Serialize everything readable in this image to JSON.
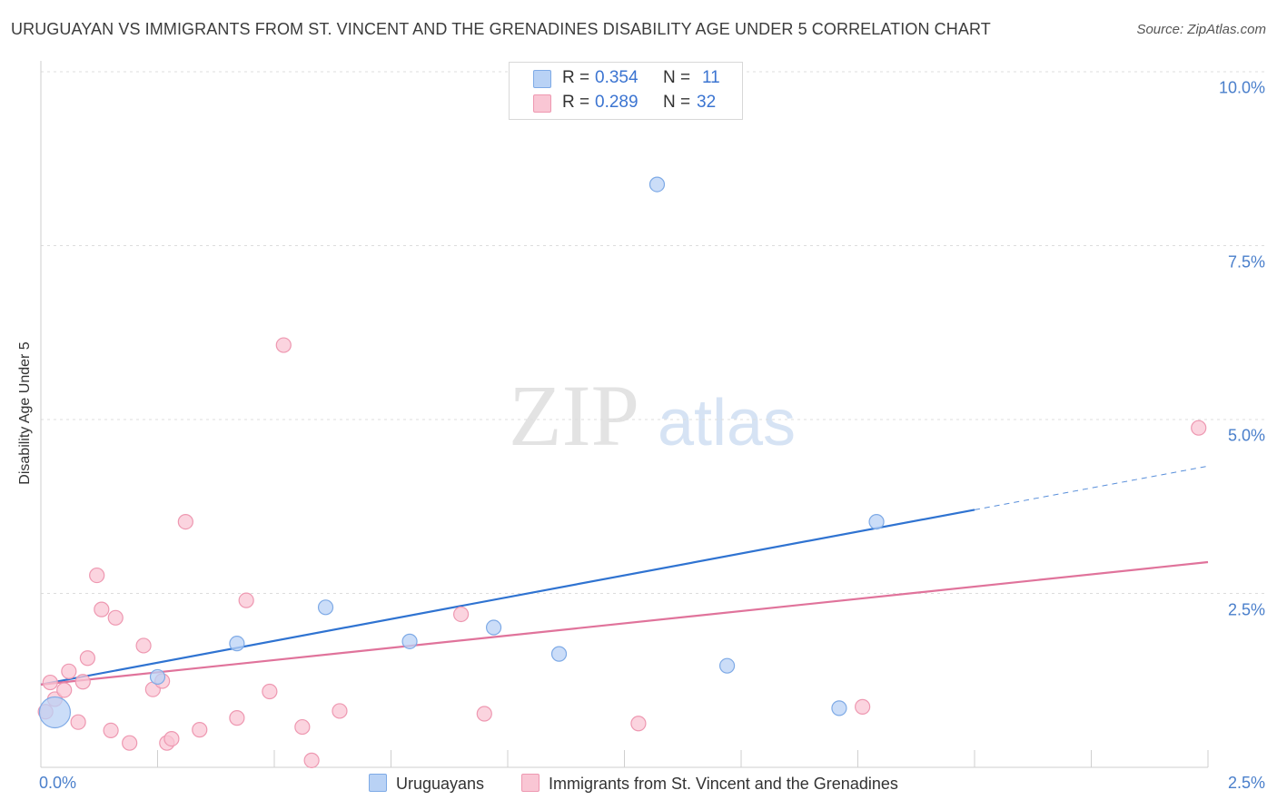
{
  "header": {
    "title": "URUGUAYAN VS IMMIGRANTS FROM ST. VINCENT AND THE GRENADINES DISABILITY AGE UNDER 5 CORRELATION CHART",
    "source": "Source: ZipAtlas.com"
  },
  "watermark": {
    "zip": "ZIP",
    "atlas": "atlas"
  },
  "legend": {
    "rows": [
      {
        "r_label": "R =",
        "r_value": "0.354",
        "n_label": "N =",
        "n_value": "11"
      },
      {
        "r_label": "R =",
        "r_value": "0.289",
        "n_label": "N =",
        "n_value": "32"
      }
    ]
  },
  "bottom_legend": {
    "series1": "Uruguayans",
    "series2": "Immigrants from St. Vincent and the Grenadines"
  },
  "colors": {
    "blue_fill": "#b9d2f5",
    "blue_stroke": "#7eaae6",
    "blue_line": "#2f73d1",
    "pink_fill": "#f9c6d4",
    "pink_stroke": "#ee98b1",
    "pink_line": "#e0739b",
    "tick_text": "#4a7fcb",
    "grid": "#dcdcdc"
  },
  "chart_data": {
    "type": "scatter",
    "title": "URUGUAYAN VS IMMIGRANTS FROM ST. VINCENT AND THE GRENADINES DISABILITY AGE UNDER 5 CORRELATION CHART",
    "xlabel": "",
    "ylabel": "Disability Age Under 5",
    "xlim": [
      0,
      2.5
    ],
    "ylim": [
      0,
      10.0
    ],
    "x_ticks": [
      "0.0%",
      "2.5%"
    ],
    "y_ticks": [
      {
        "value": 2.5,
        "label": "2.5%"
      },
      {
        "value": 5.0,
        "label": "5.0%"
      },
      {
        "value": 7.5,
        "label": "7.5%"
      },
      {
        "value": 10.0,
        "label": "10.0%"
      }
    ],
    "grid": "horizontal dashed",
    "legend_placement": "top-center",
    "series": [
      {
        "name": "Uruguayans",
        "r": 0.354,
        "n": 11,
        "trend": {
          "x": [
            0.0,
            2.5
          ],
          "y": [
            1.19,
            4.33
          ],
          "solid_until": 2.0
        },
        "points": [
          {
            "x": 0.03,
            "y": 0.79,
            "size": "large"
          },
          {
            "x": 0.25,
            "y": 1.3
          },
          {
            "x": 0.42,
            "y": 1.78
          },
          {
            "x": 0.61,
            "y": 2.3
          },
          {
            "x": 0.79,
            "y": 1.81
          },
          {
            "x": 0.97,
            "y": 2.01
          },
          {
            "x": 1.11,
            "y": 1.63
          },
          {
            "x": 1.32,
            "y": 8.38
          },
          {
            "x": 1.47,
            "y": 1.46
          },
          {
            "x": 1.71,
            "y": 0.85
          },
          {
            "x": 1.79,
            "y": 3.53
          }
        ]
      },
      {
        "name": "Immigrants from St. Vincent and the Grenadines",
        "r": 0.289,
        "n": 32,
        "trend": {
          "x": [
            0.0,
            2.5
          ],
          "y": [
            1.19,
            2.95
          ]
        },
        "points": [
          {
            "x": 0.01,
            "y": 0.8
          },
          {
            "x": 0.02,
            "y": 1.22
          },
          {
            "x": 0.03,
            "y": 0.98
          },
          {
            "x": 0.05,
            "y": 1.11
          },
          {
            "x": 0.06,
            "y": 1.38
          },
          {
            "x": 0.08,
            "y": 0.65
          },
          {
            "x": 0.09,
            "y": 1.23
          },
          {
            "x": 0.1,
            "y": 1.57
          },
          {
            "x": 0.12,
            "y": 2.76
          },
          {
            "x": 0.13,
            "y": 2.27
          },
          {
            "x": 0.15,
            "y": 0.53
          },
          {
            "x": 0.16,
            "y": 2.15
          },
          {
            "x": 0.19,
            "y": 0.35
          },
          {
            "x": 0.22,
            "y": 1.75
          },
          {
            "x": 0.24,
            "y": 1.12
          },
          {
            "x": 0.26,
            "y": 1.24
          },
          {
            "x": 0.27,
            "y": 0.35
          },
          {
            "x": 0.28,
            "y": 0.41
          },
          {
            "x": 0.31,
            "y": 3.53
          },
          {
            "x": 0.34,
            "y": 0.54
          },
          {
            "x": 0.42,
            "y": 0.71
          },
          {
            "x": 0.44,
            "y": 2.4
          },
          {
            "x": 0.49,
            "y": 1.09
          },
          {
            "x": 0.52,
            "y": 6.07
          },
          {
            "x": 0.56,
            "y": 0.58
          },
          {
            "x": 0.58,
            "y": 0.1
          },
          {
            "x": 0.64,
            "y": 0.81
          },
          {
            "x": 0.9,
            "y": 2.2
          },
          {
            "x": 0.95,
            "y": 0.77
          },
          {
            "x": 1.28,
            "y": 0.63
          },
          {
            "x": 1.76,
            "y": 0.87
          },
          {
            "x": 2.48,
            "y": 4.88
          }
        ]
      }
    ]
  }
}
